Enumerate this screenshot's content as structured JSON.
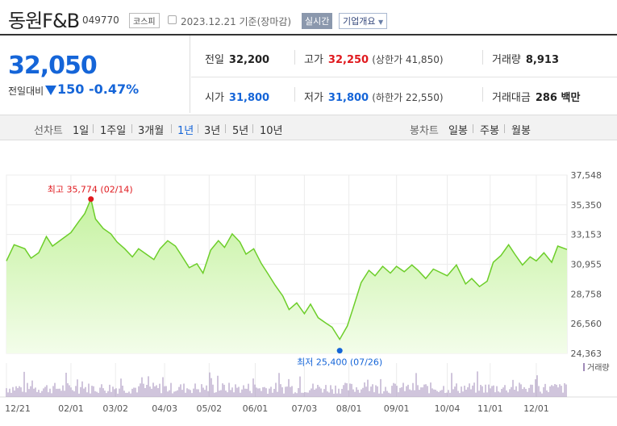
{
  "header": {
    "name": "동원F&B",
    "code": "049770",
    "market": "코스피",
    "date": "2023.12.21 기준(장마감)",
    "realtime": "실시간",
    "overview": "기업개요"
  },
  "price": {
    "current": "32,050",
    "diff_label": "전일대비",
    "diff": "150",
    "diff_rate": "-0.47%"
  },
  "stats": {
    "prev_label": "전일",
    "prev": "32,200",
    "high_label": "고가",
    "high": "32,250",
    "upper_limit": "(상한가 41,850)",
    "volume_label": "거래량",
    "volume": "8,913",
    "open_label": "시가",
    "open": "31,800",
    "low_label": "저가",
    "low": "31,800",
    "lower_limit": "(하한가 22,550)",
    "amount_label": "거래대금",
    "amount": "286 백만"
  },
  "period_bar": {
    "line_label": "선차트",
    "periods": [
      "1일",
      "1주일",
      "3개월",
      "1년",
      "3년",
      "5년",
      "10년"
    ],
    "active_period": "1년",
    "candle_label": "봉차트",
    "candles": [
      "일봉",
      "주봉",
      "월봉"
    ]
  },
  "colors": {
    "line": "#6dce2a",
    "area": "#d8f7bd",
    "rise": "#e0191e",
    "fall": "#1565d8",
    "volume": "#a08bb8"
  },
  "chart_data": {
    "type": "area",
    "y_ticks": [
      "37,548",
      "35,350",
      "33,153",
      "30,955",
      "28,758",
      "26,560",
      "24,363"
    ],
    "ylim": [
      24363,
      37548
    ],
    "x_ticks": [
      "12/21",
      "02/01",
      "03/02",
      "04/03",
      "05/02",
      "06/01",
      "07/03",
      "08/01",
      "09/01",
      "10/04",
      "11/01",
      "12/01"
    ],
    "x_tick_dates": [
      "2022-12-21",
      "2023-02-01",
      "2023-03-02",
      "2023-04-03",
      "2023-05-02",
      "2023-06-01",
      "2023-07-03",
      "2023-08-01",
      "2023-09-01",
      "2023-10-04",
      "2023-11-01",
      "2023-12-01"
    ],
    "high_annotation": "최고 35,774 (02/14)",
    "low_annotation": "최저 25,400 (07/26)",
    "volume_legend": "거래량",
    "series": [
      {
        "points": [
          [
            "2022-12-21",
            31200
          ],
          [
            "2022-12-26",
            32400
          ],
          [
            "2023-01-02",
            32100
          ],
          [
            "2023-01-06",
            31400
          ],
          [
            "2023-01-11",
            31800
          ],
          [
            "2023-01-16",
            33000
          ],
          [
            "2023-01-20",
            32300
          ],
          [
            "2023-01-26",
            32800
          ],
          [
            "2023-02-01",
            33300
          ],
          [
            "2023-02-06",
            34100
          ],
          [
            "2023-02-10",
            34700
          ],
          [
            "2023-02-14",
            35774
          ],
          [
            "2023-02-17",
            34300
          ],
          [
            "2023-02-22",
            33600
          ],
          [
            "2023-02-27",
            33200
          ],
          [
            "2023-03-03",
            32600
          ],
          [
            "2023-03-08",
            32100
          ],
          [
            "2023-03-13",
            31500
          ],
          [
            "2023-03-17",
            32100
          ],
          [
            "2023-03-22",
            31700
          ],
          [
            "2023-03-27",
            31300
          ],
          [
            "2023-03-31",
            32100
          ],
          [
            "2023-04-05",
            32700
          ],
          [
            "2023-04-10",
            32300
          ],
          [
            "2023-04-14",
            31600
          ],
          [
            "2023-04-19",
            30700
          ],
          [
            "2023-04-24",
            31000
          ],
          [
            "2023-04-28",
            30300
          ],
          [
            "2023-05-03",
            32000
          ],
          [
            "2023-05-08",
            32700
          ],
          [
            "2023-05-12",
            32200
          ],
          [
            "2023-05-17",
            33200
          ],
          [
            "2023-05-22",
            32600
          ],
          [
            "2023-05-26",
            31700
          ],
          [
            "2023-05-31",
            32100
          ],
          [
            "2023-06-05",
            31000
          ],
          [
            "2023-06-09",
            30300
          ],
          [
            "2023-06-14",
            29400
          ],
          [
            "2023-06-19",
            28600
          ],
          [
            "2023-06-23",
            27600
          ],
          [
            "2023-06-28",
            28100
          ],
          [
            "2023-07-03",
            27300
          ],
          [
            "2023-07-07",
            28000
          ],
          [
            "2023-07-12",
            27000
          ],
          [
            "2023-07-17",
            26600
          ],
          [
            "2023-07-21",
            26300
          ],
          [
            "2023-07-26",
            25400
          ],
          [
            "2023-07-31",
            26400
          ],
          [
            "2023-08-04",
            27800
          ],
          [
            "2023-08-09",
            29600
          ],
          [
            "2023-08-14",
            30500
          ],
          [
            "2023-08-18",
            30100
          ],
          [
            "2023-08-23",
            30800
          ],
          [
            "2023-08-28",
            30300
          ],
          [
            "2023-09-01",
            30800
          ],
          [
            "2023-09-06",
            30400
          ],
          [
            "2023-09-11",
            30900
          ],
          [
            "2023-09-15",
            30500
          ],
          [
            "2023-09-20",
            29900
          ],
          [
            "2023-09-25",
            30600
          ],
          [
            "2023-10-04",
            30100
          ],
          [
            "2023-10-10",
            30900
          ],
          [
            "2023-10-16",
            29500
          ],
          [
            "2023-10-20",
            29900
          ],
          [
            "2023-10-25",
            29300
          ],
          [
            "2023-10-30",
            29700
          ],
          [
            "2023-11-03",
            31100
          ],
          [
            "2023-11-08",
            31600
          ],
          [
            "2023-11-13",
            32400
          ],
          [
            "2023-11-17",
            31700
          ],
          [
            "2023-11-22",
            30900
          ],
          [
            "2023-11-27",
            31500
          ],
          [
            "2023-12-01",
            31200
          ],
          [
            "2023-12-06",
            31800
          ],
          [
            "2023-12-11",
            31100
          ],
          [
            "2023-12-15",
            32300
          ],
          [
            "2023-12-21",
            32050
          ]
        ]
      }
    ]
  }
}
